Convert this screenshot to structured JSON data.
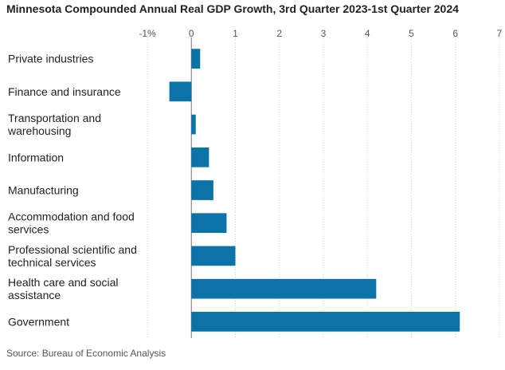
{
  "chart_data": {
    "type": "bar",
    "orientation": "horizontal",
    "title": "Minnesota Compounded Annual Real GDP Growth, 3rd Quarter 2023-1st Quarter 2024",
    "source": "Source: Bureau of Economic Analysis",
    "categories": [
      "Private industries",
      "Finance and insurance",
      "Transportation and warehousing",
      "Information",
      "Manufacturing",
      "Accommodation and food services",
      "Professional scientific and technical services",
      "Health care and social assistance",
      "Government"
    ],
    "category_lines": [
      [
        "Private industries"
      ],
      [
        "Finance and insurance"
      ],
      [
        "Transportation and",
        "warehousing"
      ],
      [
        "Information"
      ],
      [
        "Manufacturing"
      ],
      [
        "Accommodation and food",
        "services"
      ],
      [
        "Professional scientific and",
        "technical services"
      ],
      [
        "Health care and social",
        "assistance"
      ],
      [
        "Government"
      ]
    ],
    "values": [
      0.2,
      -0.5,
      0.1,
      0.4,
      0.5,
      0.8,
      1.0,
      4.2,
      6.1
    ],
    "xlim": [
      -1,
      7
    ],
    "xticks": [
      -1,
      0,
      1,
      2,
      3,
      4,
      5,
      6,
      7
    ],
    "xtick_labels": [
      "-1%",
      "0",
      "1",
      "2",
      "3",
      "4",
      "5",
      "6",
      "7"
    ],
    "grid": true,
    "bar_color": "#0b73a8"
  }
}
